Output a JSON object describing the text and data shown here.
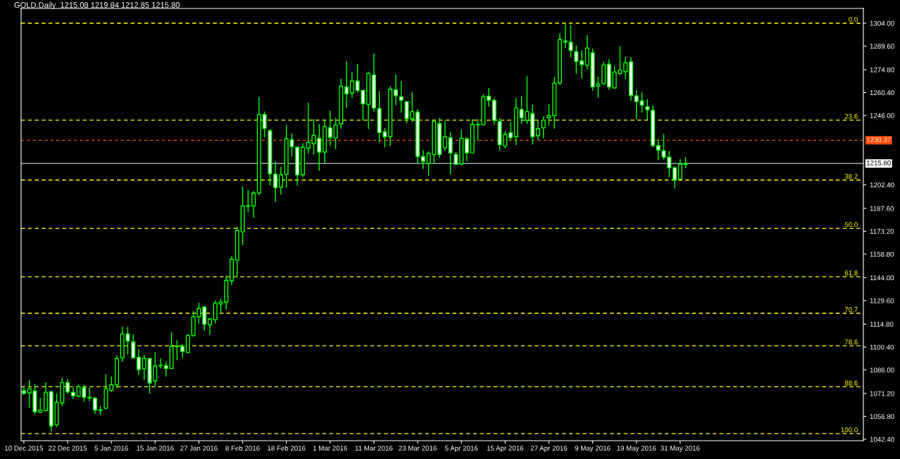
{
  "chart_data": {
    "type": "candlestick",
    "title": "GOLD,Daily  1215.08 1219.84 1212.85 1215.80",
    "categories": [
      "10 Dec 2015",
      null,
      null,
      null,
      null,
      null,
      null,
      null,
      "22 Dec 2015",
      null,
      null,
      null,
      null,
      null,
      null,
      null,
      "5 Jan 2016",
      null,
      null,
      null,
      null,
      null,
      null,
      null,
      "15 Jan 2016",
      null,
      null,
      null,
      null,
      null,
      null,
      null,
      "27 Jan 2016",
      null,
      null,
      null,
      null,
      null,
      null,
      null,
      "8 Feb 2016",
      null,
      null,
      null,
      null,
      null,
      null,
      null,
      "18 Feb 2016",
      null,
      null,
      null,
      null,
      null,
      null,
      null,
      "1 Mar 2016",
      null,
      null,
      null,
      null,
      null,
      null,
      null,
      "11 Mar 2016",
      null,
      null,
      null,
      null,
      null,
      null,
      null,
      "23 Mar 2016",
      null,
      null,
      null,
      null,
      null,
      null,
      null,
      "5 Apr 2016",
      null,
      null,
      null,
      null,
      null,
      null,
      null,
      "15 Apr 2016",
      null,
      null,
      null,
      null,
      null,
      null,
      null,
      "27 Apr 2016",
      null,
      null,
      null,
      null,
      null,
      null,
      null,
      "9 May 2016",
      null,
      null,
      null,
      null,
      null,
      null,
      null,
      "19 May 2016",
      null,
      null,
      null,
      null,
      null,
      null,
      null,
      "31 May 2016",
      null,
      null,
      null,
      null,
      null,
      null,
      null,
      null,
      null,
      null,
      null,
      null,
      null,
      null,
      null,
      null,
      null,
      null,
      null,
      null,
      null,
      null,
      null,
      null,
      null,
      null,
      null,
      null,
      null,
      null,
      null,
      null,
      null
    ],
    "ohlc": [
      [
        1072.9,
        1075.9,
        1070.4,
        1071.3
      ],
      [
        1071.5,
        1079.6,
        1062.2,
        1074.1
      ],
      [
        1072.8,
        1077.2,
        1058.2,
        1059.7
      ],
      [
        1059.5,
        1068.5,
        1058.6,
        1060.8
      ],
      [
        1060.4,
        1078.1,
        1059.9,
        1071.9
      ],
      [
        1072.2,
        1073.0,
        1047.1,
        1050.8
      ],
      [
        1051.5,
        1071.2,
        1050.1,
        1065.6
      ],
      [
        1065.3,
        1081.1,
        1063.3,
        1078.1
      ],
      [
        1078.1,
        1080.3,
        1071.0,
        1072.2
      ],
      [
        1071.9,
        1074.8,
        1067.8,
        1069.8
      ],
      [
        1069.5,
        1076.9,
        1069.0,
        1075.4
      ],
      [
        1074.8,
        1076.6,
        1066.0,
        1068.8
      ],
      [
        1068.8,
        1074.8,
        1066.3,
        1068.4
      ],
      [
        1068.2,
        1069.2,
        1058.2,
        1060.8
      ],
      [
        1060.6,
        1063.3,
        1057.7,
        1060.9
      ],
      [
        1061.9,
        1083.3,
        1061.1,
        1074.1
      ],
      [
        1073.2,
        1081.8,
        1072.2,
        1076.6
      ],
      [
        1076.6,
        1095.1,
        1074.4,
        1093.2
      ],
      [
        1093.6,
        1113.2,
        1091.0,
        1108.6
      ],
      [
        1108.6,
        1113.2,
        1095.8,
        1104.2
      ],
      [
        1103.6,
        1108.3,
        1093.1,
        1093.6
      ],
      [
        1093.9,
        1099.1,
        1082.8,
        1086.2
      ],
      [
        1086.7,
        1095.5,
        1079.6,
        1093.2
      ],
      [
        1093.2,
        1093.5,
        1071.0,
        1077.8
      ],
      [
        1079.1,
        1097.3,
        1075.9,
        1088.4
      ],
      [
        1088.6,
        1093.2,
        1087.0,
        1088.8
      ],
      [
        1088.7,
        1091.4,
        1081.8,
        1087.0
      ],
      [
        1087.0,
        1109.8,
        1086.5,
        1100.8
      ],
      [
        1100.6,
        1104.7,
        1092.1,
        1100.9
      ],
      [
        1100.8,
        1102.4,
        1093.6,
        1097.6
      ],
      [
        1097.0,
        1108.6,
        1096.6,
        1107.6
      ],
      [
        1107.6,
        1123.1,
        1106.9,
        1119.4
      ],
      [
        1119.4,
        1128.3,
        1115.0,
        1124.6
      ],
      [
        1125.6,
        1126.0,
        1110.6,
        1114.7
      ],
      [
        1114.3,
        1118.7,
        1108.1,
        1118.0
      ],
      [
        1117.6,
        1129.7,
        1115.3,
        1128.0
      ],
      [
        1127.5,
        1130.9,
        1121.6,
        1128.7
      ],
      [
        1128.6,
        1145.2,
        1124.1,
        1142.3
      ],
      [
        1142.0,
        1157.5,
        1139.3,
        1155.6
      ],
      [
        1155.1,
        1176.2,
        1144.5,
        1173.7
      ],
      [
        1172.8,
        1201.3,
        1164.4,
        1189.1
      ],
      [
        1189.0,
        1199.1,
        1185.5,
        1189.3
      ],
      [
        1189.1,
        1198.4,
        1181.7,
        1197.2
      ],
      [
        1197.2,
        1257.5,
        1195.9,
        1246.6
      ],
      [
        1246.6,
        1248.5,
        1232.3,
        1237.9
      ],
      [
        1236.4,
        1237.5,
        1202.0,
        1209.4
      ],
      [
        1209.1,
        1217.1,
        1191.7,
        1200.6
      ],
      [
        1200.9,
        1213.8,
        1196.1,
        1208.7
      ],
      [
        1209.1,
        1240.1,
        1200.6,
        1231.3
      ],
      [
        1230.8,
        1234.8,
        1220.0,
        1226.4
      ],
      [
        1226.0,
        1226.4,
        1202.0,
        1208.7
      ],
      [
        1208.7,
        1228.6,
        1207.2,
        1226.0
      ],
      [
        1225.4,
        1254.0,
        1222.0,
        1229.1
      ],
      [
        1228.2,
        1243.8,
        1221.5,
        1233.5
      ],
      [
        1231.6,
        1240.7,
        1211.2,
        1223.0
      ],
      [
        1223.0,
        1243.0,
        1215.8,
        1239.0
      ],
      [
        1238.2,
        1249.0,
        1227.1,
        1232.3
      ],
      [
        1231.8,
        1244.5,
        1224.9,
        1240.1
      ],
      [
        1240.7,
        1269.2,
        1237.7,
        1264.4
      ],
      [
        1264.0,
        1280.2,
        1250.7,
        1259.6
      ],
      [
        1260.2,
        1273.6,
        1257.2,
        1267.6
      ],
      [
        1267.6,
        1278.5,
        1260.3,
        1261.8
      ],
      [
        1261.8,
        1261.8,
        1242.9,
        1253.4
      ],
      [
        1253.0,
        1273.6,
        1237.5,
        1272.4
      ],
      [
        1271.4,
        1285.0,
        1248.5,
        1250.7
      ],
      [
        1250.3,
        1261.3,
        1229.3,
        1235.2
      ],
      [
        1235.7,
        1238.2,
        1226.0,
        1232.6
      ],
      [
        1232.6,
        1264.3,
        1226.8,
        1262.5
      ],
      [
        1262.1,
        1271.7,
        1252.5,
        1258.4
      ],
      [
        1257.7,
        1267.7,
        1247.8,
        1255.6
      ],
      [
        1254.7,
        1255.0,
        1241.1,
        1244.1
      ],
      [
        1243.9,
        1260.6,
        1241.9,
        1248.4
      ],
      [
        1248.1,
        1250.0,
        1215.6,
        1220.2
      ],
      [
        1220.1,
        1224.2,
        1212.4,
        1217.1
      ],
      [
        1215.8,
        1223.4,
        1208.2,
        1222.0
      ],
      [
        1221.5,
        1242.6,
        1215.6,
        1242.3
      ],
      [
        1240.8,
        1244.4,
        1219.4,
        1221.5
      ],
      [
        1225.7,
        1242.6,
        1223.9,
        1232.6
      ],
      [
        1232.0,
        1235.7,
        1209.1,
        1222.4
      ],
      [
        1221.5,
        1223.0,
        1215.0,
        1215.3
      ],
      [
        1215.6,
        1237.0,
        1214.6,
        1231.6
      ],
      [
        1231.3,
        1232.3,
        1217.1,
        1222.4
      ],
      [
        1222.4,
        1243.7,
        1222.2,
        1240.4
      ],
      [
        1240.1,
        1243.7,
        1230.1,
        1240.4
      ],
      [
        1240.1,
        1259.3,
        1240.1,
        1257.7
      ],
      [
        1258.1,
        1263.3,
        1251.5,
        1255.6
      ],
      [
        1255.5,
        1256.9,
        1240.1,
        1242.9
      ],
      [
        1242.2,
        1244.5,
        1223.9,
        1227.6
      ],
      [
        1226.8,
        1236.0,
        1225.4,
        1234.2
      ],
      [
        1235.2,
        1241.9,
        1230.1,
        1232.0
      ],
      [
        1232.6,
        1257.0,
        1227.4,
        1250.7
      ],
      [
        1249.7,
        1258.4,
        1240.7,
        1244.5
      ],
      [
        1242.9,
        1270.7,
        1240.7,
        1248.5
      ],
      [
        1247.1,
        1253.0,
        1227.6,
        1232.6
      ],
      [
        1233.3,
        1242.6,
        1230.5,
        1237.7
      ],
      [
        1238.2,
        1245.6,
        1231.6,
        1243.1
      ],
      [
        1244.6,
        1253.0,
        1239.7,
        1245.9
      ],
      [
        1245.9,
        1270.2,
        1237.7,
        1266.2
      ],
      [
        1266.5,
        1297.7,
        1265.1,
        1293.8
      ],
      [
        1292.8,
        1304.0,
        1288.4,
        1292.1
      ],
      [
        1292.1,
        1302.8,
        1282.5,
        1286.9
      ],
      [
        1286.1,
        1290.1,
        1272.1,
        1280.0
      ],
      [
        1280.3,
        1287.2,
        1269.2,
        1278.0
      ],
      [
        1277.6,
        1296.5,
        1274.8,
        1288.4
      ],
      [
        1285.4,
        1288.1,
        1261.5,
        1264.0
      ],
      [
        1264.5,
        1270.4,
        1257.1,
        1265.8
      ],
      [
        1266.2,
        1279.8,
        1265.1,
        1277.7
      ],
      [
        1278.2,
        1281.3,
        1262.1,
        1264.0
      ],
      [
        1263.3,
        1277.0,
        1263.3,
        1273.3
      ],
      [
        1272.4,
        1289.4,
        1271.4,
        1274.6
      ],
      [
        1273.6,
        1282.9,
        1268.9,
        1279.1
      ],
      [
        1279.7,
        1282.5,
        1255.2,
        1258.6
      ],
      [
        1258.3,
        1261.8,
        1243.8,
        1254.7
      ],
      [
        1255.2,
        1260.6,
        1247.8,
        1252.5
      ],
      [
        1251.5,
        1256.2,
        1243.4,
        1249.6
      ],
      [
        1249.3,
        1252.5,
        1226.1,
        1227.1
      ],
      [
        1227.1,
        1231.1,
        1217.8,
        1224.2
      ],
      [
        1223.7,
        1234.5,
        1218.3,
        1219.8
      ],
      [
        1219.8,
        1223.7,
        1207.2,
        1213.1
      ],
      [
        1213.1,
        1213.9,
        1200.1,
        1205.4
      ],
      [
        1206.0,
        1218.6,
        1206.0,
        1215.3
      ],
      [
        1215.08,
        1219.84,
        1212.85,
        1215.8
      ],
      null,
      null,
      null,
      null,
      null,
      null,
      null,
      null,
      null,
      null,
      null,
      null,
      null,
      null,
      null,
      null,
      null,
      null,
      null,
      null,
      null,
      null,
      null,
      null,
      null,
      null,
      null,
      null,
      null,
      null,
      null,
      null
    ],
    "color": "#00ff00",
    "ylim": [
      1041.5,
      1313.3
    ],
    "yticks": [
      {
        "value": 1304.0,
        "label": "1304.00"
      },
      {
        "value": 1289.6,
        "label": "1289.60"
      },
      {
        "value": 1274.8,
        "label": "1274.80"
      },
      {
        "value": 1260.4,
        "label": "1260.40"
      },
      {
        "value": 1246.0,
        "label": "1246.00"
      },
      {
        "value": 1202.4,
        "label": "1202.40"
      },
      {
        "value": 1187.6,
        "label": "1187.60"
      },
      {
        "value": 1173.2,
        "label": "1173.20"
      },
      {
        "value": 1158.8,
        "label": "1158.80"
      },
      {
        "value": 1144.0,
        "label": "1144.00"
      },
      {
        "value": 1129.6,
        "label": "1129.60"
      },
      {
        "value": 1114.8,
        "label": "1114.80"
      },
      {
        "value": 1100.4,
        "label": "1100.40"
      },
      {
        "value": 1086.0,
        "label": "1086.00"
      },
      {
        "value": 1071.2,
        "label": "1071.20"
      },
      {
        "value": 1056.8,
        "label": "1056.80"
      },
      {
        "value": 1042.4,
        "label": "1042.40"
      }
    ],
    "ref_lines": [
      {
        "axis": "y",
        "value": 1304.0,
        "color": "#ffff00",
        "line_style": "dashed"
      },
      {
        "axis": "y",
        "value": 1243.1,
        "color": "#ffff00",
        "line_style": "dashed"
      },
      {
        "axis": "y",
        "value": 1205.4,
        "color": "#ffff00",
        "line_style": "dashed"
      },
      {
        "axis": "y",
        "value": 1175.0,
        "color": "#ffff00",
        "line_style": "dashed"
      },
      {
        "axis": "y",
        "value": 1144.6,
        "color": "#ffff00",
        "line_style": "dashed"
      },
      {
        "axis": "y",
        "value": 1121.6,
        "color": "#ffff00",
        "line_style": "dashed"
      },
      {
        "axis": "y",
        "value": 1101.2,
        "color": "#ffff00",
        "line_style": "dashed"
      },
      {
        "axis": "y",
        "value": 1075.4,
        "color": "#ffff00",
        "line_style": "dashed"
      },
      {
        "axis": "y",
        "value": 1046.0,
        "color": "#ffff00",
        "line_style": "dashed"
      },
      {
        "axis": "y",
        "value": 1230.37,
        "label": "1230.37",
        "color": "#ff4500",
        "line_style": "dotted"
      },
      {
        "axis": "y",
        "value": 1215.8,
        "label": "1215.80",
        "color": "#9aa3ad",
        "line_style": "solid"
      }
    ],
    "annotations": [
      {
        "text": "0.0",
        "y": 1304.0
      },
      {
        "text": "23.6",
        "y": 1243.1
      },
      {
        "text": "38.2",
        "y": 1205.4
      },
      {
        "text": "50.0",
        "y": 1175.0
      },
      {
        "text": "61.8",
        "y": 1144.6
      },
      {
        "text": "70.7",
        "y": 1121.6
      },
      {
        "text": "78.6",
        "y": 1101.2
      },
      {
        "text": "88.6",
        "y": 1075.4
      },
      {
        "text": "100.0",
        "y": 1046.0
      }
    ],
    "grid": false,
    "legend": false
  }
}
